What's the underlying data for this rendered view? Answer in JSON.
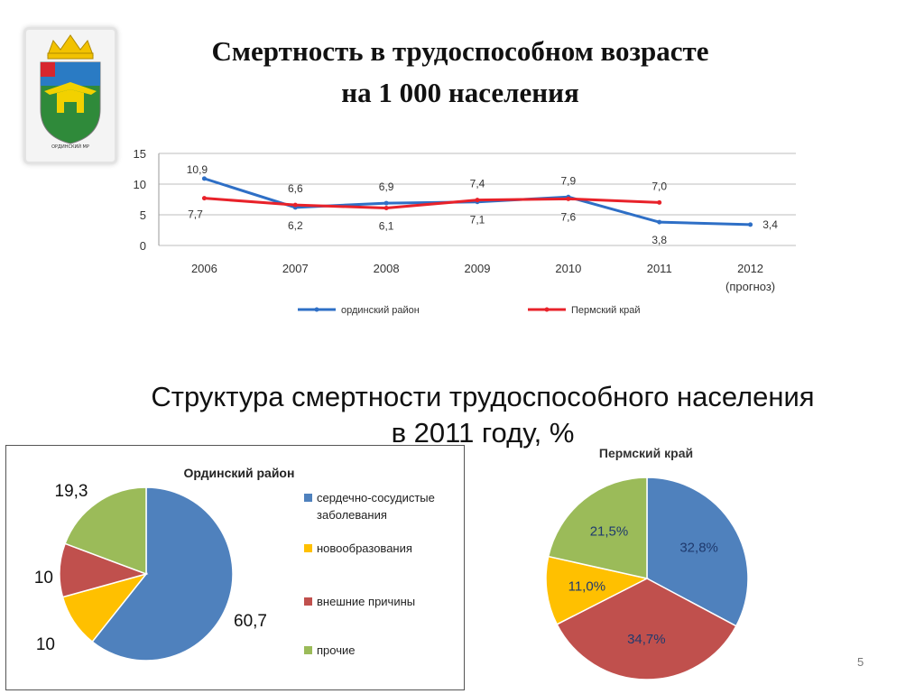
{
  "slide": {
    "title_line1": "Смертность в трудоспособном возрасте",
    "title_line2": "на 1 000 населения",
    "section_title_line1": "Структура смертности трудоспособного населения",
    "section_title_line2": "в 2011 году, %",
    "page_number": "5",
    "emblem_caption": "ОРДИНСКИЙ МР"
  },
  "colors": {
    "blue": "#2e6fc6",
    "red": "#e8222a",
    "pie_blue": "#4f81bd",
    "pie_yellow": "#ffc000",
    "pie_red": "#c0504d",
    "pie_green": "#9bbb59"
  },
  "chart_data": [
    {
      "type": "line",
      "title": "",
      "ylim": [
        0,
        15
      ],
      "yticks": [
        "0",
        "5",
        "10",
        "15"
      ],
      "grid": true,
      "legend_position": "bottom",
      "categories": [
        "2006",
        "2007",
        "2008",
        "2009",
        "2010",
        "2011",
        "2012"
      ],
      "category_sublabels": [
        "",
        "",
        "",
        "",
        "",
        "",
        "(прогноз)"
      ],
      "series": [
        {
          "name": "ординский  район",
          "color": "#2e6fc6",
          "values": [
            10.9,
            6.2,
            6.9,
            7.1,
            7.9,
            3.8,
            3.4
          ],
          "labels": [
            "10,9",
            "6,2",
            "6,9",
            "7,1",
            "7,9",
            "3,8",
            "3,4"
          ]
        },
        {
          "name": "Пермский край",
          "color": "#e8222a",
          "values": [
            7.7,
            6.6,
            6.1,
            7.4,
            7.6,
            7.0,
            null
          ],
          "labels": [
            "7,7",
            "6,6",
            "6,1",
            "7,4",
            "7,6",
            "7,0",
            ""
          ]
        }
      ]
    },
    {
      "type": "pie",
      "title": "Ординский район",
      "legend_position": "right",
      "slices": [
        {
          "name": "сердечно-сосудистые заболевания",
          "value": 60.7,
          "label": "60,7",
          "color": "#4f81bd"
        },
        {
          "name": "новообразования",
          "value": 10,
          "label": "10",
          "color": "#ffc000"
        },
        {
          "name": "внешние причины",
          "value": 10,
          "label": "10",
          "color": "#c0504d"
        },
        {
          "name": "прочие",
          "value": 19.3,
          "label": "19,3",
          "color": "#9bbb59"
        }
      ]
    },
    {
      "type": "pie",
      "title": "Пермский край",
      "slices": [
        {
          "name": "сердечно-сосудистые заболевания",
          "value": 32.8,
          "label": "32,8%",
          "color": "#4f81bd"
        },
        {
          "name": "внешние причины",
          "value": 34.7,
          "label": "34,7%",
          "color": "#c0504d"
        },
        {
          "name": "новообразования",
          "value": 11.0,
          "label": "11,0%",
          "color": "#ffc000"
        },
        {
          "name": "прочие",
          "value": 21.5,
          "label": "21,5%",
          "color": "#9bbb59"
        }
      ]
    }
  ]
}
